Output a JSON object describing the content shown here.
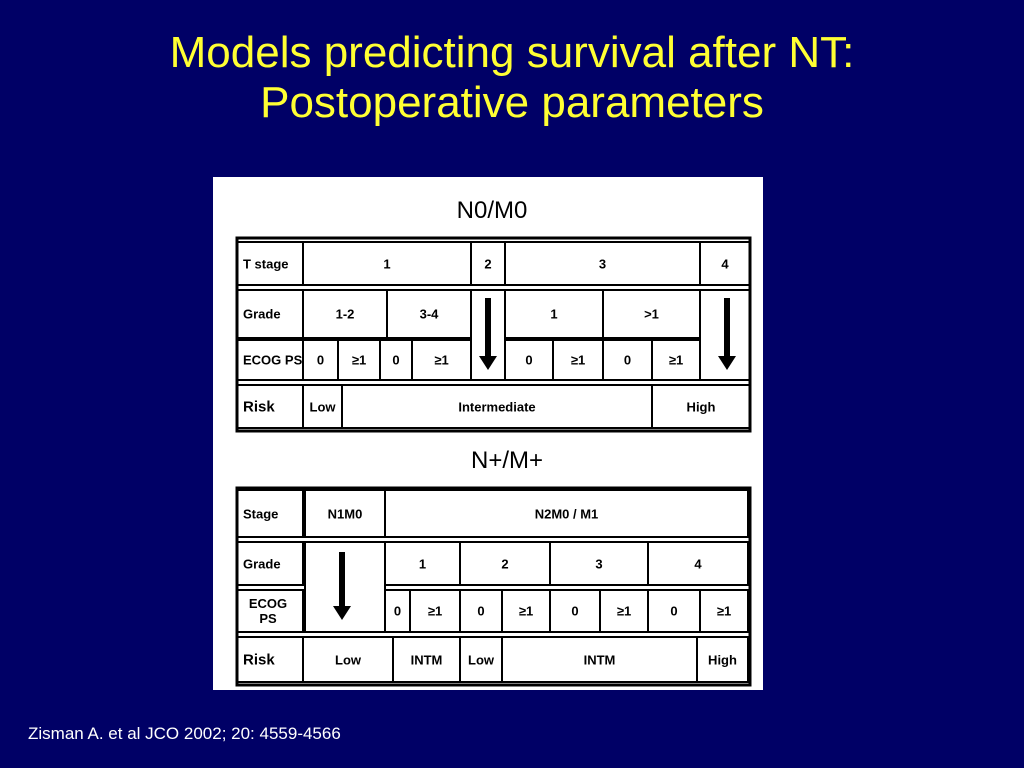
{
  "slide": {
    "title_lines": [
      "Models predicting survival after NT:",
      "Postoperative parameters"
    ],
    "citation": "Zisman A. et al JCO 2002; 20: 4559-4566"
  },
  "table1": {
    "caption": "N0/M0",
    "rows": [
      [
        "T stage",
        "1",
        "2",
        "3",
        "4"
      ],
      [
        "Grade",
        "1-2",
        "3-4",
        "1",
        ">1"
      ],
      [
        "ECOG PS",
        "0",
        "≥1",
        "0",
        "≥1",
        "0",
        "≥1",
        "0",
        "≥1"
      ],
      [
        "Risk",
        "Low",
        "Intermediate",
        "High"
      ]
    ]
  },
  "table2": {
    "caption": "N+/M+",
    "rows": [
      [
        "Stage",
        "N1M0",
        "N2M0 / M1"
      ],
      [
        "Grade",
        "1",
        "2",
        "3",
        "4"
      ],
      [
        "ECOG PS",
        "0",
        "≥1",
        "0",
        "≥1",
        "0",
        "≥1",
        "0",
        "≥1"
      ],
      [
        "Risk",
        "Low",
        "INTM",
        "Low",
        "INTM",
        "High"
      ]
    ]
  }
}
